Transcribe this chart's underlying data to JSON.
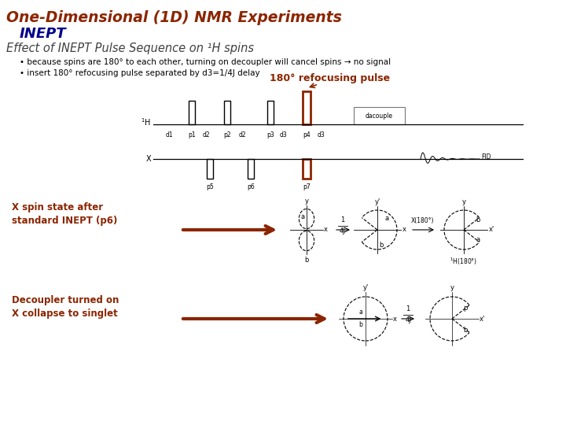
{
  "title_line1": "One-Dimensional (1D) NMR Experiments",
  "title_line1_color": "#8B2500",
  "title_line2": "INEPT",
  "title_line2_color": "#00008B",
  "subtitle": "Effect of INEPT Pulse Sequence on ¹H spins",
  "subtitle_color": "#404040",
  "bullet1": "• because spins are 180° to each other, turning on decoupler will cancel spins → no signal",
  "bullet2": "• insert 180° refocusing pulse separated by d3=1/4J delay",
  "bullet_color": "#000000",
  "annotation_text": "180° refocusing pulse",
  "annotation_color": "#8B2500",
  "label_x_spin": "X spin state after\nstandard INEPT (p6)",
  "label_decouple": "Decoupler turned on\nX collapse to singlet",
  "label_color": "#8B2500",
  "bg_color": "#ffffff",
  "pulse_color": "#000000",
  "highlight_color": "#8B2500",
  "fid_color": "#000000"
}
